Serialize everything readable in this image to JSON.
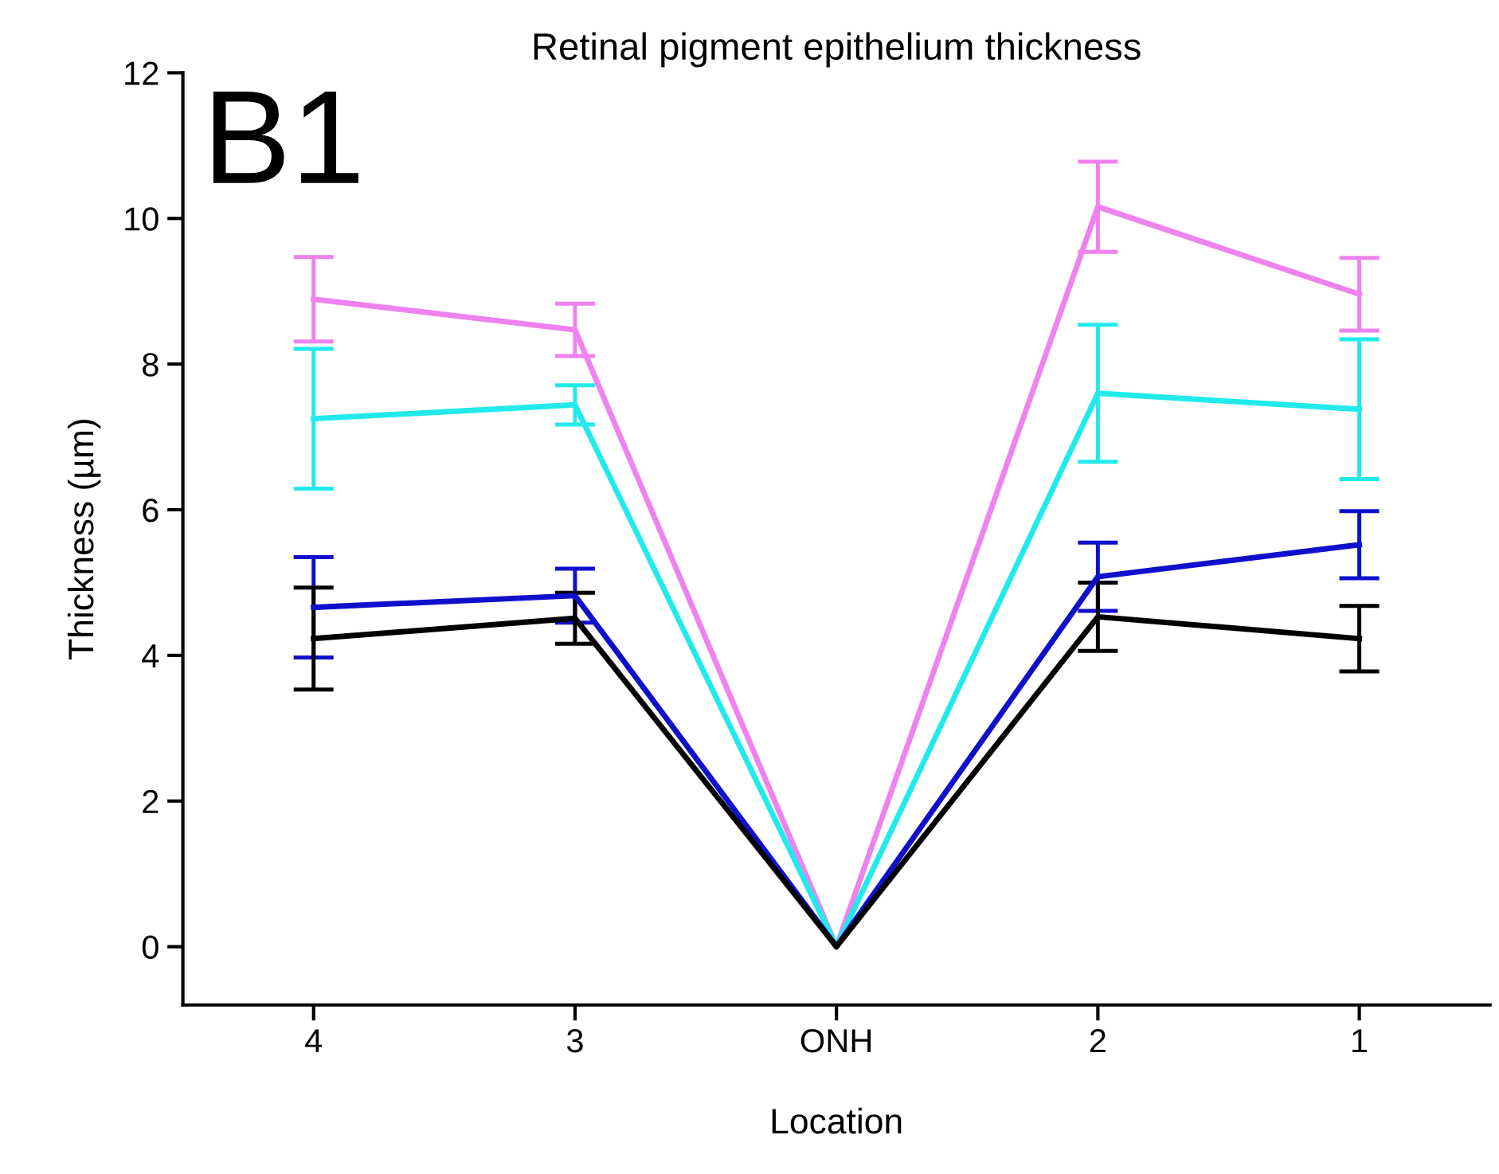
{
  "chart_data": {
    "type": "line",
    "title": "Retinal pigment epithelium thickness",
    "xlabel": "Location",
    "ylabel": "Thickness (µm)",
    "categories": [
      "4",
      "3",
      "ONH",
      "2",
      "1"
    ],
    "series": [
      {
        "color": "#ee82ee",
        "values": [
          8.89,
          8.47,
          0,
          10.16,
          8.96
        ],
        "errors": [
          0.58,
          0.36,
          null,
          0.62,
          0.5
        ]
      },
      {
        "color": "#22eaea",
        "values": [
          7.25,
          7.44,
          0,
          7.6,
          7.38
        ],
        "errors": [
          0.96,
          0.27,
          null,
          0.94,
          0.96
        ]
      },
      {
        "color": "#1010cc",
        "values": [
          4.66,
          4.82,
          0,
          5.08,
          5.52
        ],
        "errors": [
          0.69,
          0.37,
          null,
          0.47,
          0.46
        ]
      },
      {
        "color": "#000000",
        "values": [
          4.23,
          4.51,
          0,
          4.53,
          4.23
        ],
        "errors": [
          0.7,
          0.35,
          null,
          0.47,
          0.45
        ]
      }
    ],
    "ylim": [
      -0.8,
      12
    ],
    "yticks": [
      0,
      2,
      4,
      6,
      8,
      10,
      12
    ],
    "grid": false,
    "marker": "none",
    "line_style": "solid",
    "annotations": [
      "B1"
    ]
  }
}
